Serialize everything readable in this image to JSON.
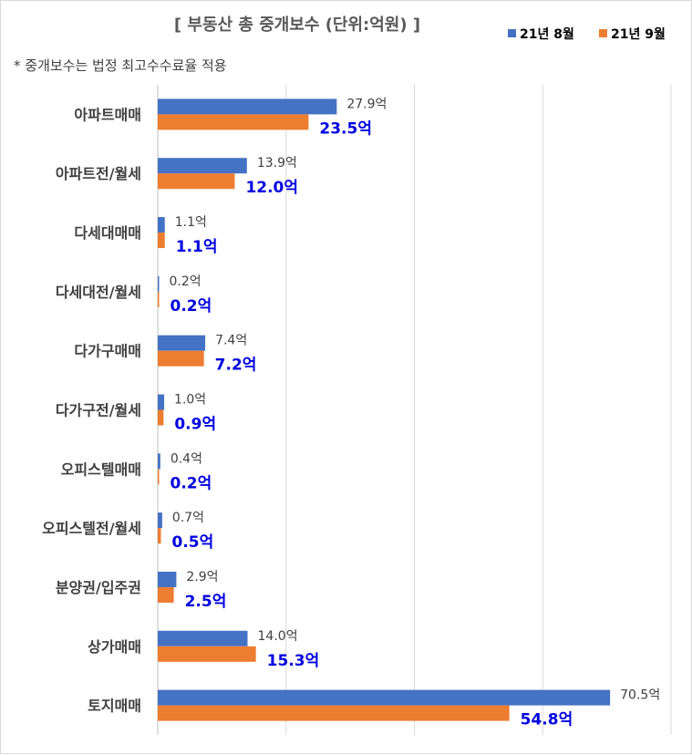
{
  "chart_data": {
    "type": "bar",
    "orientation": "horizontal",
    "title": "[ 부동산 총 중개보수 (단위:억원) ]",
    "note": "* 중개보수는 법정 최고수수료율 적용",
    "unit_suffix": "억",
    "categories": [
      "아파트매매",
      "아파트전/월세",
      "다세대매매",
      "다세대전/월세",
      "다가구매매",
      "다가구전/월세",
      "오피스텔매매",
      "오피스텔전/월세",
      "분양권/입주권",
      "상가매매",
      "토지매매"
    ],
    "series": [
      {
        "name": "21년 8월",
        "color": "#4472c4",
        "values": [
          27.9,
          13.9,
          1.1,
          0.2,
          7.4,
          1.0,
          0.4,
          0.7,
          2.9,
          14.0,
          70.5
        ],
        "labels": [
          "27.9",
          "13.9",
          "1.1",
          "0.2",
          "7.4",
          "1.0",
          "0.4",
          "0.7",
          "2.9",
          "14.0",
          "70.5"
        ]
      },
      {
        "name": "21년 9월",
        "color": "#ed7d31",
        "values": [
          23.5,
          12.0,
          1.1,
          0.2,
          7.2,
          0.9,
          0.2,
          0.5,
          2.5,
          15.3,
          54.8
        ],
        "labels": [
          "23.5",
          "12.0",
          "1.1",
          "0.2",
          "7.2",
          "0.9",
          "0.2",
          "0.5",
          "2.5",
          "15.3",
          "54.8"
        ]
      }
    ],
    "xlim": [
      0,
      80
    ],
    "gridlines": [
      0,
      20,
      40,
      60,
      80
    ],
    "legend_position": "top-right",
    "grid": true
  }
}
